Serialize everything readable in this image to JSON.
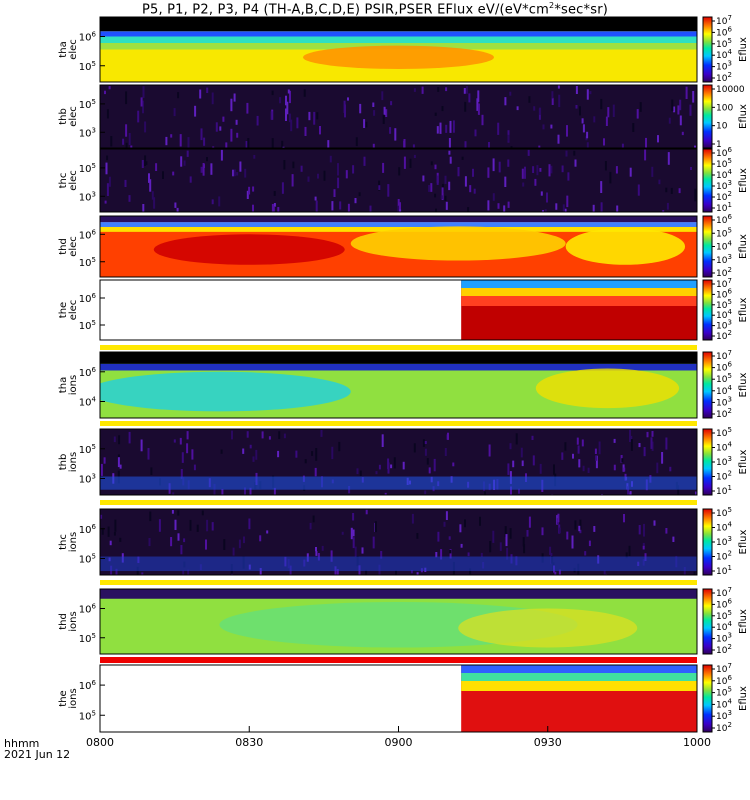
{
  "title_parts": {
    "main": "P5, P1, P2, P3, P4 (TH-A,B,C,D,E) PSIR,PSER EFlux eV/(eV*cm",
    "sup": "2",
    "end": "*sec*sr)"
  },
  "footer": {
    "time_label": "hhmm",
    "date": "2021 Jun 12"
  },
  "chart_data": {
    "type": "heatmap",
    "title": "P5, P1, P2, P3, P4 (TH-A,B,C,D,E) PSIR,PSER EFlux eV/(eV*cm2*sec*sr)",
    "x_ticks": [
      "0800",
      "0830",
      "0900",
      "0930",
      "1000"
    ],
    "x_range": [
      "0800",
      "1000"
    ],
    "colorbar_label": "Eflux",
    "panels": [
      {
        "label": [
          "tha",
          "elec"
        ],
        "y_ticks": [
          {
            "base": "10",
            "exp": "6"
          },
          {
            "base": "10",
            "exp": "5"
          }
        ],
        "colorbar_ticks": [
          {
            "base": "10",
            "exp": "7"
          },
          {
            "base": "10",
            "exp": "6"
          },
          {
            "base": "10",
            "exp": "5"
          },
          {
            "base": "10",
            "exp": "4"
          },
          {
            "base": "10",
            "exp": "3"
          },
          {
            "base": "10",
            "exp": "2"
          }
        ],
        "colorbar_range_log": [
          2,
          7
        ]
      },
      {
        "label": [
          "thb",
          "elec"
        ],
        "y_ticks": [
          {
            "base": "10",
            "exp": "5"
          },
          {
            "base": "10",
            "exp": "3"
          }
        ],
        "colorbar_ticks": [
          {
            "base": "10000",
            "exp": ""
          },
          {
            "base": "100",
            "exp": ""
          },
          {
            "base": "10",
            "exp": ""
          },
          {
            "base": "1",
            "exp": ""
          }
        ],
        "colorbar_range_log": [
          0,
          4
        ]
      },
      {
        "label": [
          "thc",
          "elec"
        ],
        "y_ticks": [
          {
            "base": "10",
            "exp": "5"
          },
          {
            "base": "10",
            "exp": "3"
          }
        ],
        "colorbar_ticks": [
          {
            "base": "10",
            "exp": "6"
          },
          {
            "base": "10",
            "exp": "5"
          },
          {
            "base": "10",
            "exp": "4"
          },
          {
            "base": "10",
            "exp": "3"
          },
          {
            "base": "10",
            "exp": "2"
          },
          {
            "base": "10",
            "exp": "1"
          }
        ],
        "colorbar_range_log": [
          1,
          6
        ]
      },
      {
        "label": [
          "thd",
          "elec"
        ],
        "y_ticks": [
          {
            "base": "10",
            "exp": "6"
          },
          {
            "base": "10",
            "exp": "5"
          }
        ],
        "colorbar_ticks": [
          {
            "base": "10",
            "exp": "6"
          },
          {
            "base": "10",
            "exp": "5"
          },
          {
            "base": "10",
            "exp": "4"
          },
          {
            "base": "10",
            "exp": "3"
          },
          {
            "base": "10",
            "exp": "2"
          }
        ],
        "colorbar_range_log": [
          2,
          6
        ]
      },
      {
        "label": [
          "the",
          "elec"
        ],
        "y_ticks": [
          {
            "base": "10",
            "exp": "6"
          },
          {
            "base": "10",
            "exp": "5"
          }
        ],
        "colorbar_ticks": [
          {
            "base": "10",
            "exp": "7"
          },
          {
            "base": "10",
            "exp": "6"
          },
          {
            "base": "10",
            "exp": "5"
          },
          {
            "base": "10",
            "exp": "4"
          },
          {
            "base": "10",
            "exp": "3"
          },
          {
            "base": "10",
            "exp": "2"
          }
        ],
        "colorbar_range_log": [
          2,
          7
        ]
      },
      {
        "label": [
          "tha",
          "ions"
        ],
        "y_ticks": [
          {
            "base": "10",
            "exp": "6"
          },
          {
            "base": "10",
            "exp": "4"
          }
        ],
        "colorbar_ticks": [
          {
            "base": "10",
            "exp": "7"
          },
          {
            "base": "10",
            "exp": "6"
          },
          {
            "base": "10",
            "exp": "5"
          },
          {
            "base": "10",
            "exp": "4"
          },
          {
            "base": "10",
            "exp": "3"
          },
          {
            "base": "10",
            "exp": "2"
          }
        ],
        "colorbar_range_log": [
          2,
          7
        ]
      },
      {
        "label": [
          "thb",
          "ions"
        ],
        "y_ticks": [
          {
            "base": "10",
            "exp": "5"
          },
          {
            "base": "10",
            "exp": "3"
          }
        ],
        "colorbar_ticks": [
          {
            "base": "10",
            "exp": "5"
          },
          {
            "base": "10",
            "exp": "4"
          },
          {
            "base": "10",
            "exp": "3"
          },
          {
            "base": "10",
            "exp": "2"
          },
          {
            "base": "10",
            "exp": "1"
          }
        ],
        "colorbar_range_log": [
          1,
          5
        ]
      },
      {
        "label": [
          "thc",
          "ions"
        ],
        "y_ticks": [
          {
            "base": "10",
            "exp": "6"
          },
          {
            "base": "10",
            "exp": "5"
          }
        ],
        "colorbar_ticks": [
          {
            "base": "10",
            "exp": "5"
          },
          {
            "base": "10",
            "exp": "4"
          },
          {
            "base": "10",
            "exp": "3"
          },
          {
            "base": "10",
            "exp": "2"
          },
          {
            "base": "10",
            "exp": "1"
          }
        ],
        "colorbar_range_log": [
          1,
          5
        ]
      },
      {
        "label": [
          "thd",
          "ions"
        ],
        "y_ticks": [
          {
            "base": "10",
            "exp": "6"
          },
          {
            "base": "10",
            "exp": "5"
          }
        ],
        "colorbar_ticks": [
          {
            "base": "10",
            "exp": "7"
          },
          {
            "base": "10",
            "exp": "6"
          },
          {
            "base": "10",
            "exp": "5"
          },
          {
            "base": "10",
            "exp": "4"
          },
          {
            "base": "10",
            "exp": "3"
          },
          {
            "base": "10",
            "exp": "2"
          }
        ],
        "colorbar_range_log": [
          2,
          7
        ]
      },
      {
        "label": [
          "the",
          "ions"
        ],
        "y_ticks": [
          {
            "base": "10",
            "exp": "6"
          },
          {
            "base": "10",
            "exp": "5"
          }
        ],
        "colorbar_ticks": [
          {
            "base": "10",
            "exp": "7"
          },
          {
            "base": "10",
            "exp": "6"
          },
          {
            "base": "10",
            "exp": "5"
          },
          {
            "base": "10",
            "exp": "4"
          },
          {
            "base": "10",
            "exp": "3"
          },
          {
            "base": "10",
            "exp": "2"
          }
        ],
        "colorbar_range_log": [
          2,
          7
        ]
      }
    ]
  }
}
